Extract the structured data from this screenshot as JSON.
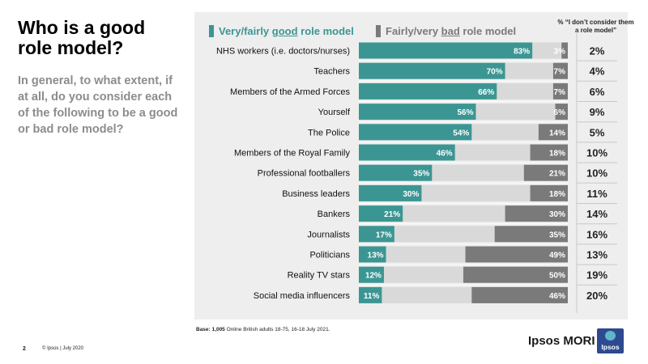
{
  "header": {
    "title": "Who is a good role model?",
    "subtitle": "In general, to what extent, if at all, do you consider each of the following to be a good or bad role model?"
  },
  "legend": {
    "good_prefix": "Very/fairly ",
    "good_emph": "good",
    "good_suffix": " role model",
    "bad_prefix": "Fairly/very ",
    "bad_emph": "bad",
    "bad_suffix": " role model"
  },
  "column_header": "% “I don’t consider them a role model”",
  "base": {
    "label": "Base:",
    "count": "1,005",
    "text": "Online British adults 18-75,  16-18 July 2021."
  },
  "footer": {
    "page": "2",
    "copyright": "© Ipsos | July 2020",
    "brand": "Ipsos MORI",
    "logo_text": "Ipsos"
  },
  "colors": {
    "good": "#3b9693",
    "neutral": "#d9d9d9",
    "bad": "#7a7a7a",
    "panel": "#eeeeee"
  },
  "chart_data": {
    "type": "bar",
    "orientation": "horizontal",
    "stacked": true,
    "title": "Who is a good role model?",
    "categories": [
      "NHS workers (i.e. doctors/nurses)",
      "Teachers",
      "Members of the Armed Forces",
      "Yourself",
      "The Police",
      "Members of the Royal Family",
      "Professional footballers",
      "Business leaders",
      "Bankers",
      "Journalists",
      "Politicians",
      "Reality TV stars",
      "Social media influencers"
    ],
    "series": [
      {
        "name": "Very/fairly good role model",
        "values": [
          83,
          70,
          66,
          56,
          54,
          46,
          35,
          30,
          21,
          17,
          13,
          12,
          11
        ]
      },
      {
        "name": "Fairly/very bad role model",
        "values": [
          3,
          7,
          7,
          6,
          14,
          18,
          21,
          18,
          30,
          35,
          49,
          50,
          46
        ]
      },
      {
        "name": "% “I don’t consider them a role model”",
        "values": [
          2,
          4,
          6,
          9,
          5,
          10,
          10,
          11,
          14,
          16,
          13,
          19,
          20
        ]
      }
    ],
    "value_suffix": "%",
    "xlim": [
      0,
      100
    ]
  }
}
